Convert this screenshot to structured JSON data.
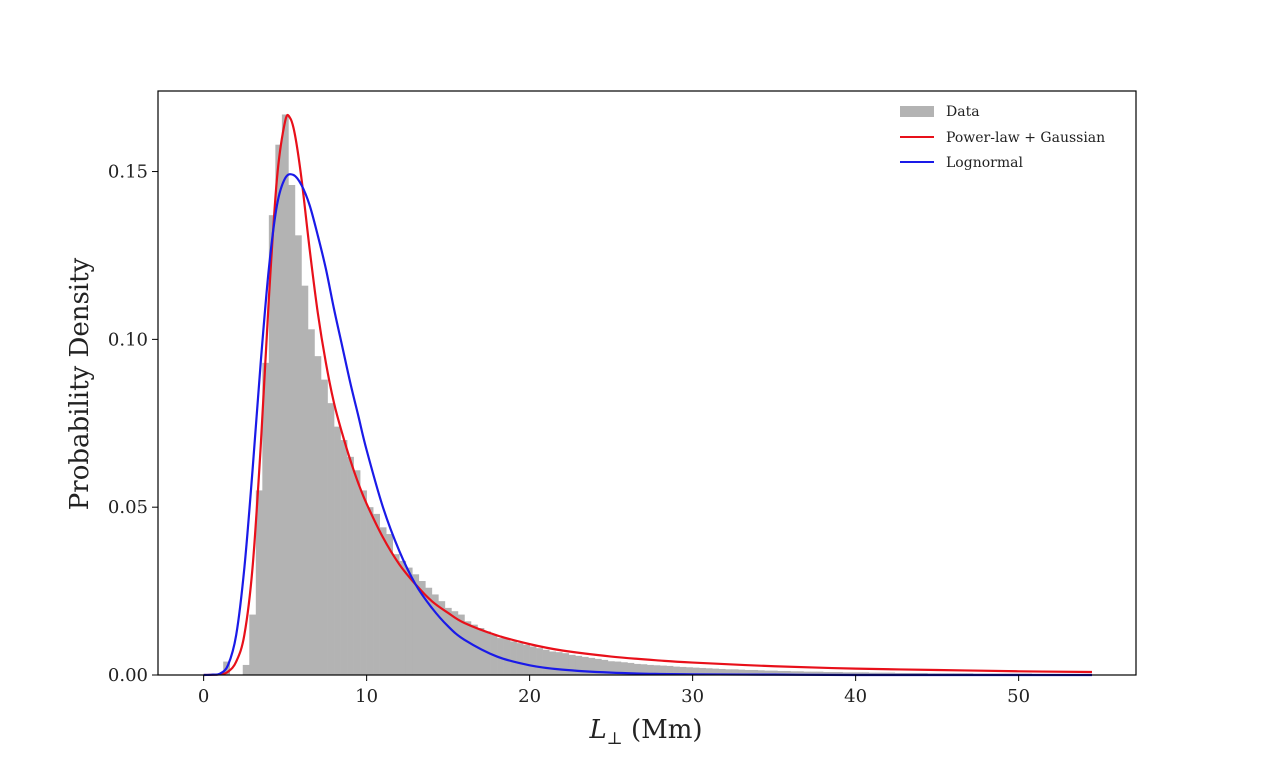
{
  "chart_data": {
    "type": "bar",
    "title": "",
    "xlabel": "L",
    "xlabel_sub": "⊥",
    "xlabel_unit": " (Mm)",
    "ylabel": "Probability Density",
    "xlim": [
      -2.8,
      57.2
    ],
    "ylim": [
      0,
      0.174
    ],
    "x_ticks": [
      0,
      10,
      20,
      30,
      40,
      50
    ],
    "x_tick_labels": [
      "0",
      "10",
      "20",
      "30",
      "40",
      "50"
    ],
    "y_ticks": [
      0.0,
      0.05,
      0.1,
      0.15
    ],
    "y_tick_labels": [
      "0.00",
      "0.05",
      "0.10",
      "0.15"
    ],
    "grid": false,
    "legend_position": "top-right",
    "histogram": {
      "name": "Data",
      "color": "#b3b3b3",
      "bin_width": 0.4,
      "start": 0.8,
      "values": [
        0.0,
        0.004,
        0.0,
        0.0,
        0.003,
        0.018,
        0.055,
        0.093,
        0.137,
        0.158,
        0.167,
        0.146,
        0.131,
        0.116,
        0.103,
        0.095,
        0.088,
        0.081,
        0.074,
        0.07,
        0.065,
        0.061,
        0.055,
        0.05,
        0.048,
        0.044,
        0.042,
        0.036,
        0.034,
        0.032,
        0.03,
        0.028,
        0.026,
        0.024,
        0.022,
        0.02,
        0.019,
        0.018,
        0.016,
        0.015,
        0.014,
        0.013,
        0.012,
        0.011,
        0.011,
        0.01,
        0.0095,
        0.009,
        0.0085,
        0.008,
        0.0075,
        0.007,
        0.0068,
        0.0065,
        0.006,
        0.0057,
        0.0054,
        0.0051,
        0.0048,
        0.0045,
        0.0041,
        0.004,
        0.0038,
        0.0036,
        0.0033,
        0.0032,
        0.003,
        0.0029,
        0.0028,
        0.0027,
        0.0025,
        0.0024,
        0.0023,
        0.0022,
        0.0021,
        0.002,
        0.0019,
        0.0018,
        0.0017,
        0.0017,
        0.0016,
        0.0015,
        0.0015,
        0.0014,
        0.0013,
        0.0013,
        0.0012,
        0.0012,
        0.0011,
        0.0011,
        0.001,
        0.001,
        0.001,
        0.0009,
        0.0009,
        0.0009,
        0.0008,
        0.0008,
        0.0008,
        0.0008,
        0.0007,
        0.0007,
        0.0007,
        0.0007,
        0.0006,
        0.0006,
        0.0006,
        0.0006,
        0.0006,
        0.0005,
        0.0005,
        0.0005,
        0.0005,
        0.0005,
        0.0005,
        0.0005,
        0.0004,
        0.0004,
        0.0004,
        0.0004,
        0.0004,
        0.0004,
        0.0004,
        0.0004,
        0.0004,
        0.0003,
        0.0003,
        0.0003,
        0.0003,
        0.0003,
        0.0003,
        0.0003
      ]
    },
    "series": [
      {
        "name": "Power-law + Gaussian",
        "color": "#e8101a",
        "x": [
          0,
          1,
          1.5,
          2,
          2.5,
          3,
          3.5,
          4,
          4.5,
          5,
          5.3,
          5.6,
          6,
          6.5,
          7,
          7.5,
          8,
          8.5,
          9,
          9.5,
          10,
          11,
          12,
          13,
          14,
          15,
          16,
          18,
          20,
          22,
          25,
          28,
          30,
          35,
          40,
          45,
          50,
          54.5
        ],
        "y": [
          0,
          0.0002,
          0.001,
          0.004,
          0.012,
          0.032,
          0.068,
          0.112,
          0.148,
          0.165,
          0.166,
          0.161,
          0.148,
          0.127,
          0.108,
          0.093,
          0.081,
          0.072,
          0.064,
          0.057,
          0.051,
          0.041,
          0.033,
          0.027,
          0.022,
          0.0185,
          0.0155,
          0.0118,
          0.0092,
          0.0073,
          0.0055,
          0.0043,
          0.0037,
          0.0026,
          0.0019,
          0.0015,
          0.0011,
          0.0009
        ]
      },
      {
        "name": "Lognormal",
        "color": "#1a1ae8",
        "x": [
          0,
          0.5,
          1,
          1.5,
          2,
          2.5,
          3,
          3.5,
          4,
          4.5,
          5,
          5.5,
          6,
          6.5,
          7,
          7.5,
          8,
          8.5,
          9,
          9.5,
          10,
          11,
          12,
          13,
          14,
          15,
          16,
          18,
          20,
          22,
          25,
          28,
          30,
          35,
          40,
          50,
          54.5
        ],
        "y": [
          0,
          0.0001,
          0.0004,
          0.003,
          0.012,
          0.032,
          0.061,
          0.093,
          0.121,
          0.14,
          0.148,
          0.149,
          0.146,
          0.14,
          0.131,
          0.121,
          0.109,
          0.098,
          0.087,
          0.077,
          0.067,
          0.05,
          0.037,
          0.027,
          0.02,
          0.0145,
          0.0105,
          0.0055,
          0.0029,
          0.0016,
          0.0007,
          0.0003,
          0.0002,
          0.0001,
          0,
          0,
          0
        ]
      }
    ]
  }
}
